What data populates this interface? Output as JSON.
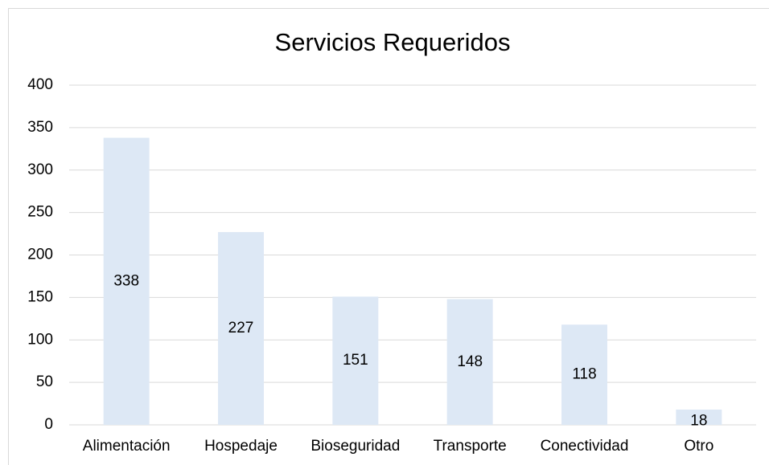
{
  "chart_data": {
    "type": "bar",
    "title": "Servicios Requeridos",
    "categories": [
      "Alimentación",
      "Hospedaje",
      "Bioseguridad",
      "Transporte",
      "Conectividad",
      "Otro"
    ],
    "values": [
      338,
      227,
      151,
      148,
      118,
      18
    ],
    "color": "#dde8f5",
    "ylim": [
      0,
      400
    ],
    "yticks": [
      0,
      50,
      100,
      150,
      200,
      250,
      300,
      350,
      400
    ],
    "grid": true
  }
}
